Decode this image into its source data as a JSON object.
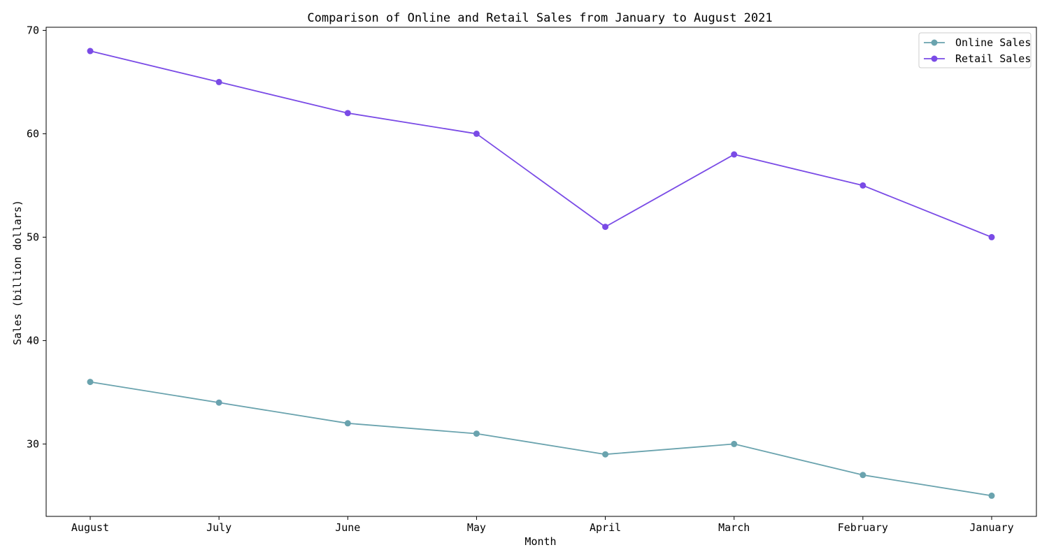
{
  "chart_data": {
    "type": "line",
    "title": "Comparison of Online and Retail Sales from January to August 2021",
    "xlabel": "Month",
    "ylabel": "Sales (billion dollars)",
    "categories": [
      "August",
      "July",
      "June",
      "May",
      "April",
      "March",
      "February",
      "January"
    ],
    "series": [
      {
        "name": "Online Sales",
        "values": [
          36,
          34,
          32,
          31,
          29,
          30,
          27,
          25
        ],
        "color": "#6aa3ae"
      },
      {
        "name": "Retail Sales",
        "values": [
          68,
          65,
          62,
          60,
          51,
          58,
          55,
          50
        ],
        "color": "#7a4be6"
      }
    ],
    "ylim": [
      23,
      70.3
    ],
    "yticks": [
      30,
      40,
      50,
      60,
      70
    ],
    "grid": false,
    "legend_position": "top-right",
    "marker": "circle"
  }
}
